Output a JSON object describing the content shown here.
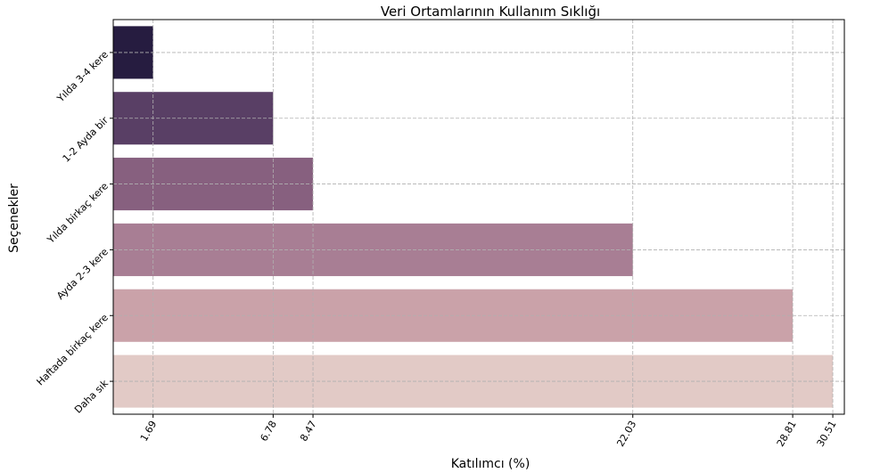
{
  "chart_data": {
    "type": "barh",
    "title": "Veri Ortamlarının Kullanım Sıklığı",
    "xlabel": "Katılımcı (%)",
    "ylabel": "Seçenekler",
    "categories": [
      "Yılda 3-4 kere",
      "1-2 Ayda bir",
      "Yılda birkaç kere",
      "Ayda 2-3 kere",
      "Haftada birkaç kere",
      "Daha sık"
    ],
    "values": [
      1.69,
      6.78,
      8.47,
      22.03,
      28.81,
      30.51
    ],
    "colors": [
      "#261c40",
      "#593f65",
      "#87607f",
      "#a87e94",
      "#caa2a9",
      "#e2cac6"
    ],
    "xlim": [
      0,
      31
    ],
    "xticks": [
      1.69,
      6.78,
      8.47,
      22.03,
      28.81,
      30.51
    ],
    "grid": true
  }
}
